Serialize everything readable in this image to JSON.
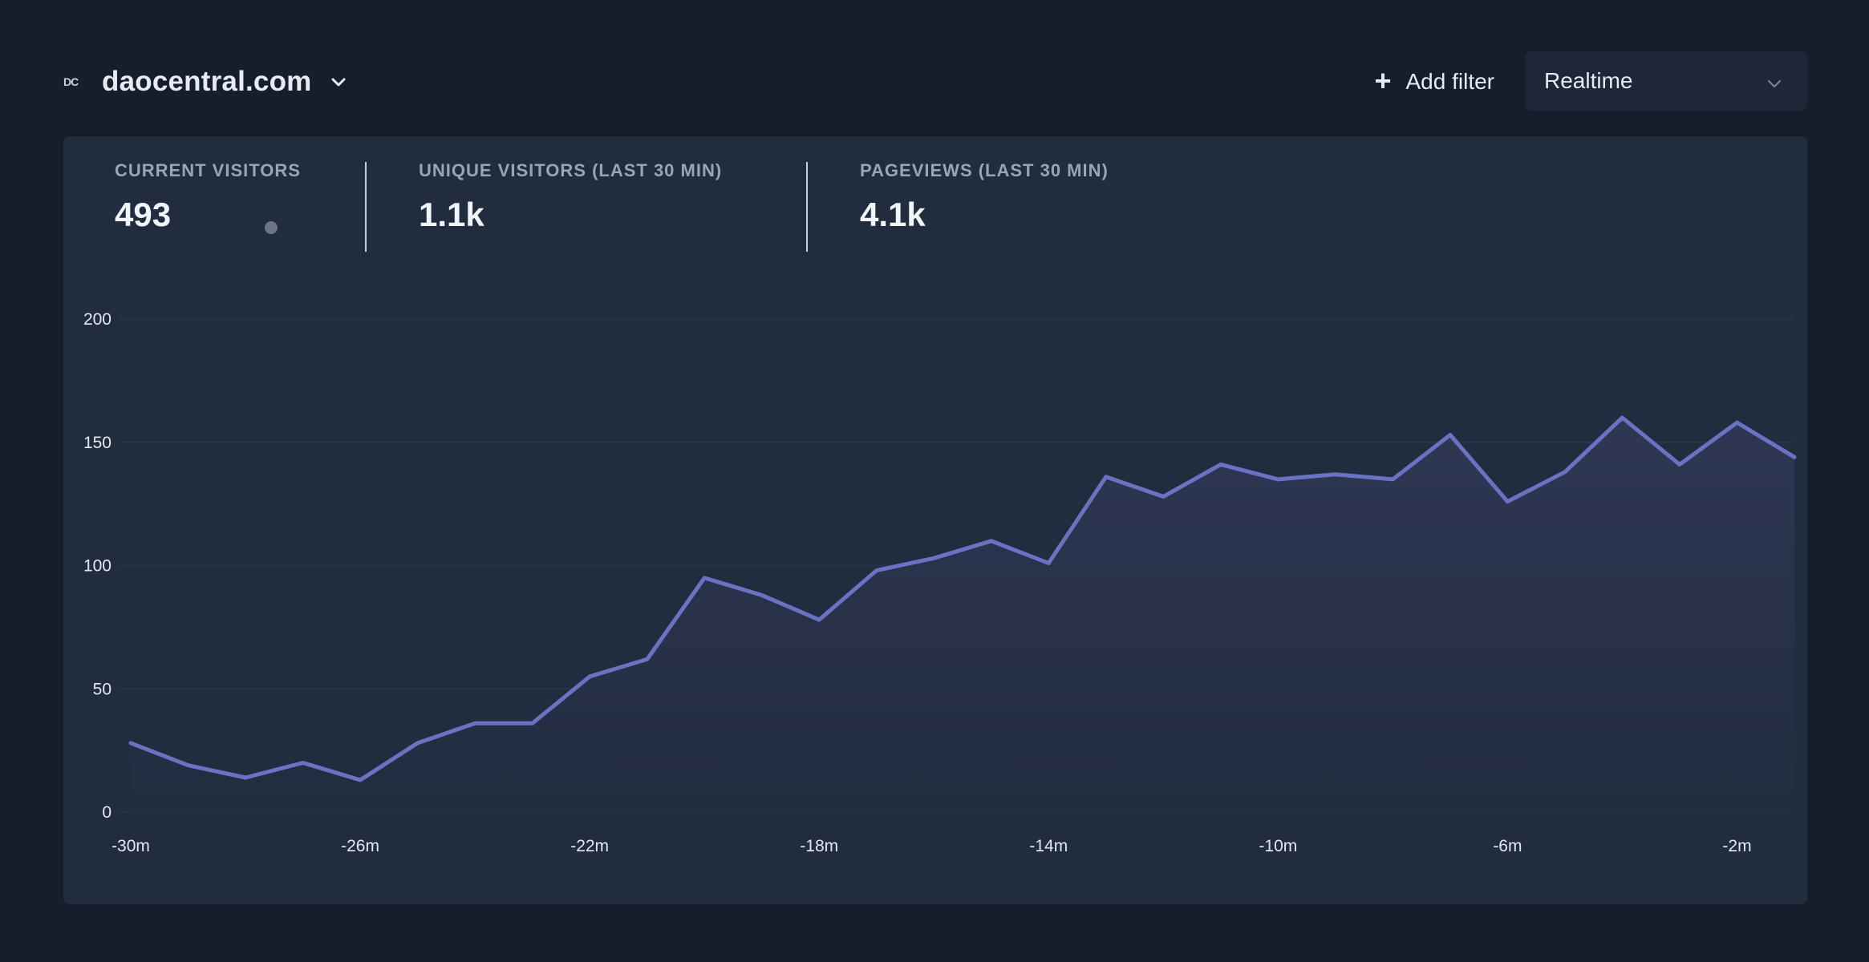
{
  "site": {
    "logo_text": "DC",
    "name": "daocentral.com"
  },
  "toolbar": {
    "add_filter_label": "Add filter",
    "period_value": "Realtime"
  },
  "stats": [
    {
      "label": "CURRENT VISITORS",
      "value": "493"
    },
    {
      "label": "UNIQUE VISITORS (LAST 30 MIN)",
      "value": "1.1k"
    },
    {
      "label": "PAGEVIEWS (LAST 30 MIN)",
      "value": "4.1k"
    }
  ],
  "colors": {
    "background": "#161d2b",
    "card": "#222c3f",
    "line": "#6b72c3",
    "fill": "#2f3754"
  },
  "chart_data": {
    "type": "area",
    "title": "",
    "xlabel": "",
    "ylabel": "",
    "x": [
      -30,
      -29,
      -28,
      -27,
      -26,
      -25,
      -24,
      -23,
      -22,
      -21,
      -20,
      -19,
      -18,
      -17,
      -16,
      -15,
      -14,
      -13,
      -12,
      -11,
      -10,
      -9,
      -8,
      -7,
      -6,
      -5,
      -4,
      -3,
      -2,
      -1
    ],
    "values": [
      28,
      19,
      14,
      20,
      13,
      28,
      36,
      36,
      55,
      62,
      95,
      88,
      78,
      98,
      103,
      110,
      101,
      136,
      128,
      141,
      135,
      137,
      135,
      153,
      126,
      138,
      160,
      141,
      158,
      144
    ],
    "x_ticks": [
      -30,
      -26,
      -22,
      -18,
      -14,
      -10,
      -6,
      -2
    ],
    "x_tick_labels": [
      "-30m",
      "-26m",
      "-22m",
      "-18m",
      "-14m",
      "-10m",
      "-6m",
      "-2m"
    ],
    "y_ticks": [
      0,
      50,
      100,
      150,
      200
    ],
    "y_tick_labels": [
      "0",
      "50",
      "100",
      "150",
      "200"
    ],
    "ylim": [
      0,
      200
    ],
    "xlim": [
      -30,
      -1
    ],
    "grid": true
  }
}
